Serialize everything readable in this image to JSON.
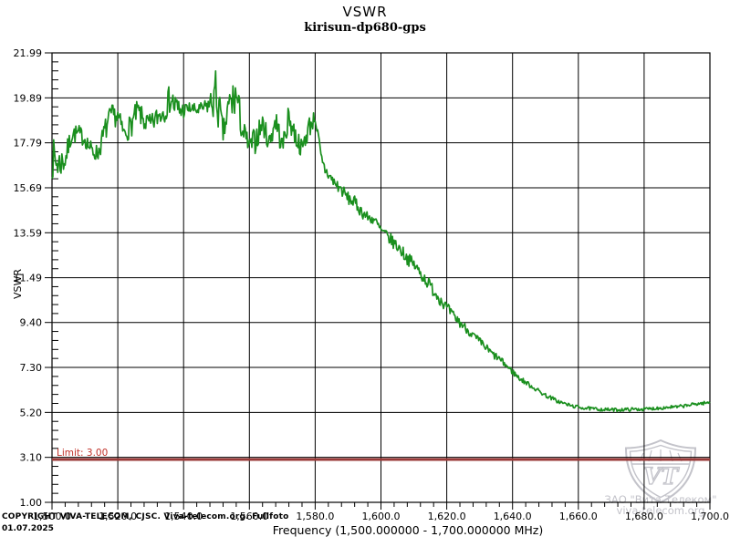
{
  "page": {
    "title": "VSWR",
    "subtitle": "kirisun-dp680-gps",
    "footer": {
      "copyright": "COPYRIGHT VIVA-TELECOM, CJSC. Viva-telecom.org. Fullfoto",
      "date": "01.07.2025"
    },
    "watermark": {
      "org": "ЗАО \"Вита-Телеком\"",
      "site": "viva-telecom.org",
      "monogram": "VT",
      "color": "#c3c3ca"
    }
  },
  "chart_data": {
    "type": "line",
    "title": "VSWR",
    "subtitle": "kirisun-dp680-gps",
    "xlabel": "Frequency (1,500.000000 - 1,700.000000 MHz)",
    "ylabel": "VSWR",
    "xlim": [
      1500,
      1700
    ],
    "ylim": [
      1.0,
      21.99
    ],
    "grid": true,
    "legend": "none",
    "x_ticks": {
      "values": [
        1500,
        1520,
        1540,
        1560,
        1580,
        1600,
        1620,
        1640,
        1660,
        1680,
        1700
      ],
      "labels": [
        "1,500.0",
        "1,520.0",
        "1,540.0",
        "1,560.0",
        "1,580.0",
        "1,600.0",
        "1,620.0",
        "1,640.0",
        "1,660.0",
        "1,680.0",
        "1,700.0"
      ],
      "minor_step": 4
    },
    "y_ticks": {
      "values": [
        21.99,
        19.89,
        17.79,
        15.69,
        13.59,
        11.49,
        9.4,
        7.3,
        5.2,
        3.1,
        1.0
      ],
      "labels": [
        "21.99",
        "19.89",
        "17.79",
        "15.69",
        "13.59",
        "11.49",
        "9.40",
        "7.30",
        "5.20",
        "3.10",
        "1.00"
      ],
      "minor_divisions": 5
    },
    "limit": {
      "label": "Limit: 3.00",
      "value": 3.0,
      "line_color": "#9a3a38",
      "label_color": "#c03028"
    },
    "noise_seed": 7,
    "series": [
      {
        "name": "vswr-trace",
        "color": "#1a8f1e",
        "x_step": 2,
        "x": [
          1500,
          1502,
          1504,
          1506,
          1508,
          1510,
          1512,
          1514,
          1516,
          1518,
          1520,
          1522,
          1524,
          1526,
          1528,
          1530,
          1532,
          1534,
          1536,
          1538,
          1540,
          1542,
          1544,
          1546,
          1548,
          1550,
          1552,
          1554,
          1556,
          1558,
          1560,
          1562,
          1564,
          1566,
          1568,
          1570,
          1572,
          1574,
          1576,
          1578,
          1580,
          1582,
          1584,
          1586,
          1588,
          1590,
          1592,
          1594,
          1596,
          1598,
          1600,
          1602,
          1604,
          1606,
          1608,
          1610,
          1612,
          1614,
          1616,
          1618,
          1620,
          1622,
          1624,
          1626,
          1628,
          1630,
          1632,
          1634,
          1636,
          1638,
          1640,
          1642,
          1644,
          1646,
          1648,
          1650,
          1652,
          1654,
          1656,
          1658,
          1660,
          1662,
          1664,
          1666,
          1668,
          1670,
          1672,
          1674,
          1676,
          1678,
          1680,
          1682,
          1684,
          1686,
          1688,
          1690,
          1692,
          1694,
          1696,
          1698,
          1700
        ],
        "mid": [
          17.1,
          16.8,
          17.0,
          18.2,
          18.2,
          18.0,
          17.4,
          17.3,
          18.3,
          19.1,
          19.0,
          18.2,
          18.6,
          19.3,
          18.8,
          18.6,
          19.0,
          19.3,
          19.9,
          19.3,
          19.3,
          19.4,
          19.3,
          19.4,
          19.6,
          20.0,
          18.2,
          19.5,
          20.0,
          18.3,
          17.6,
          18.0,
          18.7,
          17.8,
          18.9,
          17.6,
          19.0,
          18.1,
          17.5,
          18.5,
          19.0,
          16.8,
          16.3,
          15.9,
          15.6,
          15.2,
          15.0,
          14.6,
          14.3,
          14.2,
          13.7,
          13.4,
          13.1,
          12.8,
          12.4,
          12.1,
          11.7,
          11.3,
          10.9,
          10.5,
          10.1,
          9.7,
          9.4,
          9.1,
          8.8,
          8.5,
          8.2,
          7.9,
          7.7,
          7.4,
          7.1,
          6.8,
          6.6,
          6.4,
          6.2,
          6.0,
          5.85,
          5.7,
          5.6,
          5.5,
          5.45,
          5.4,
          5.37,
          5.35,
          5.33,
          5.32,
          5.32,
          5.33,
          5.34,
          5.35,
          5.35,
          5.37,
          5.4,
          5.42,
          5.45,
          5.45,
          5.5,
          5.55,
          5.6,
          5.63,
          5.65
        ],
        "noise": [
          1.0,
          0.8,
          0.6,
          0.45,
          0.45,
          0.4,
          0.45,
          0.4,
          0.6,
          0.5,
          0.5,
          0.4,
          0.6,
          0.5,
          0.5,
          0.5,
          0.5,
          0.6,
          0.7,
          0.8,
          0.4,
          0.3,
          0.3,
          0.3,
          0.5,
          1.4,
          0.5,
          1.2,
          0.9,
          0.7,
          0.4,
          0.7,
          0.5,
          0.5,
          0.7,
          0.5,
          0.6,
          0.6,
          0.4,
          0.6,
          0.3,
          0.5,
          0.3,
          0.3,
          0.3,
          0.3,
          0.3,
          0.3,
          0.25,
          0.25,
          0.25,
          0.3,
          0.3,
          0.3,
          0.3,
          0.3,
          0.3,
          0.3,
          0.3,
          0.3,
          0.25,
          0.25,
          0.25,
          0.2,
          0.2,
          0.2,
          0.2,
          0.2,
          0.15,
          0.15,
          0.15,
          0.12,
          0.12,
          0.12,
          0.1,
          0.1,
          0.1,
          0.1,
          0.08,
          0.08,
          0.08,
          0.08,
          0.08,
          0.08,
          0.08,
          0.08,
          0.08,
          0.08,
          0.08,
          0.08,
          0.08,
          0.08,
          0.08,
          0.08,
          0.08,
          0.08,
          0.08,
          0.08,
          0.08,
          0.08,
          0.08
        ]
      }
    ]
  }
}
